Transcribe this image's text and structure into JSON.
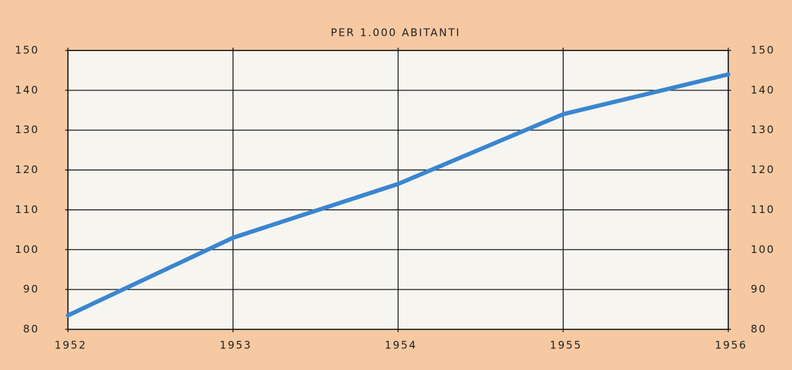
{
  "chart_data": {
    "type": "line",
    "title": "PER 1.000 ABITANTI",
    "x": [
      1952,
      1953,
      1954,
      1955,
      1956
    ],
    "xlim": [
      1952,
      1956
    ],
    "xticks": [
      1952,
      1953,
      1954,
      1955,
      1956
    ],
    "series": [
      {
        "color": "#3a86cf",
        "values": [
          83.5,
          103,
          116.5,
          134,
          144
        ]
      }
    ],
    "ylim": [
      80,
      150
    ],
    "yticks": [
      80,
      90,
      100,
      110,
      120,
      130,
      140,
      150
    ],
    "y2lim": [
      80,
      150
    ],
    "y2ticks": [
      80,
      90,
      100,
      110,
      120,
      130,
      140,
      150
    ],
    "grid": true
  }
}
